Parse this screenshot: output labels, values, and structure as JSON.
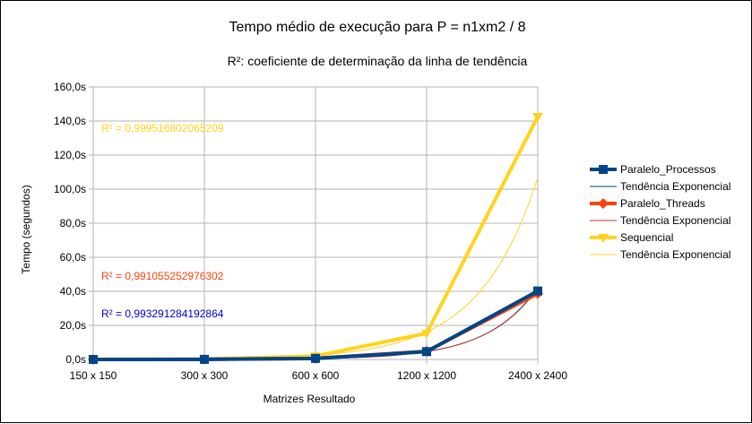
{
  "chart_data": {
    "type": "line",
    "title": "Tempo médio de execução para P = n1xm2 / 8",
    "subtitle": "R²: coeficiente de determinação da linha de tendência",
    "xlabel": "Matrizes Resultado",
    "ylabel": "Tempo (segundos)",
    "categories": [
      "150 x 150",
      "300 x 300",
      "600 x 600",
      "1200 x 1200",
      "2400 x 2400"
    ],
    "ylim": [
      0,
      160
    ],
    "yticks": [
      {
        "value": 0,
        "label": "0,0s"
      },
      {
        "value": 20,
        "label": "20,0s"
      },
      {
        "value": 40,
        "label": "40,0s"
      },
      {
        "value": 60,
        "label": "60,0s"
      },
      {
        "value": 80,
        "label": "80,0s"
      },
      {
        "value": 100,
        "label": "100,0s"
      },
      {
        "value": 120,
        "label": "120,0s"
      },
      {
        "value": 140,
        "label": "140,0s"
      },
      {
        "value": 160,
        "label": "160,0s"
      }
    ],
    "grid": true,
    "legend_position": "right",
    "series": [
      {
        "name": "Paralelo_Processos",
        "color": "#004586",
        "marker": "square",
        "values": [
          0.0,
          0.05,
          0.6,
          4.6,
          40.2
        ]
      },
      {
        "name": "Paralelo_Threads",
        "color": "#ff420e",
        "marker": "diamond",
        "values": [
          0.0,
          0.05,
          0.6,
          4.8,
          38.7
        ]
      },
      {
        "name": "Sequencial",
        "color": "#ffd320",
        "marker": "triangle-down",
        "values": [
          0.1,
          0.2,
          2.0,
          15.4,
          142.6
        ]
      }
    ],
    "trendlines": [
      {
        "name": "Tendência Exponencial",
        "series": "Paralelo_Processos",
        "color": "#004586",
        "type": "exponential",
        "annotation": "R² = 0,993291284192864",
        "annotation_color": "#0000cc"
      },
      {
        "name": "Tendência Exponencial",
        "series": "Paralelo_Threads",
        "color": "#c0392b",
        "type": "exponential",
        "annotation": "R² = 0,991055252976302",
        "annotation_color": "#ff420e"
      },
      {
        "name": "Tendência Exponencial",
        "series": "Sequencial",
        "color": "#ffd320",
        "type": "exponential",
        "annotation": "R² = 0,999516802065209",
        "annotation_color": "#ffd320"
      }
    ],
    "legend": [
      {
        "label": "Paralelo_Processos",
        "kind": "series",
        "ref": 0
      },
      {
        "label": "Tendência Exponencial",
        "kind": "trend",
        "ref": 0
      },
      {
        "label": "Paralelo_Threads",
        "kind": "series",
        "ref": 1
      },
      {
        "label": "Tendência Exponencial",
        "kind": "trend",
        "ref": 1
      },
      {
        "label": "Sequencial",
        "kind": "series",
        "ref": 2
      },
      {
        "label": "Tendência Exponencial",
        "kind": "trend",
        "ref": 2
      }
    ]
  }
}
